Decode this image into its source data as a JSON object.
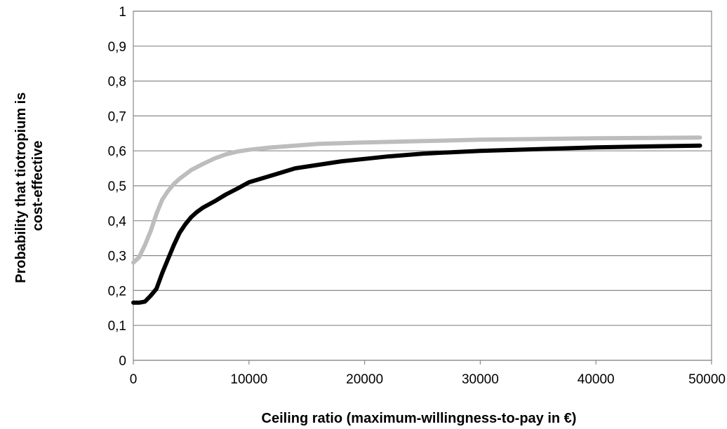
{
  "chart_data": {
    "type": "line",
    "title": "",
    "xlabel": "Ceiling ratio (maximum-willingness-to-pay in €)",
    "ylabel_lines": [
      "Probability that tiotropium is",
      "cost-effective"
    ],
    "xlim": [
      0,
      50000
    ],
    "ylim": [
      0,
      1
    ],
    "x_ticks": [
      0,
      10000,
      20000,
      30000,
      40000,
      50000
    ],
    "x_tick_labels": [
      "0",
      "10000",
      "20000",
      "30000",
      "40000",
      "50000"
    ],
    "y_ticks": [
      0,
      0.1,
      0.2,
      0.3,
      0.4,
      0.5,
      0.6,
      0.7,
      0.8,
      0.9,
      1
    ],
    "y_tick_labels": [
      "0",
      "0,1",
      "0,2",
      "0,3",
      "0,4",
      "0,5",
      "0,6",
      "0,7",
      "0,8",
      "0,9",
      "1"
    ],
    "grid": "horizontal",
    "legend": "none",
    "series": [
      {
        "color": "#bdbdbd",
        "x": [
          0,
          500,
          1000,
          1500,
          2000,
          2500,
          3000,
          3500,
          4000,
          5000,
          6000,
          7000,
          8000,
          9000,
          10000,
          12000,
          14000,
          16000,
          18000,
          20000,
          25000,
          30000,
          35000,
          40000,
          45000,
          49000
        ],
        "y": [
          0.28,
          0.295,
          0.33,
          0.37,
          0.42,
          0.46,
          0.485,
          0.505,
          0.52,
          0.545,
          0.562,
          0.578,
          0.59,
          0.598,
          0.603,
          0.61,
          0.615,
          0.62,
          0.622,
          0.624,
          0.628,
          0.632,
          0.634,
          0.636,
          0.637,
          0.638
        ]
      },
      {
        "color": "#000000",
        "x": [
          0,
          500,
          1000,
          1500,
          2000,
          2500,
          3000,
          3500,
          4000,
          4500,
          5000,
          5500,
          6000,
          7000,
          8000,
          9000,
          10000,
          12000,
          14000,
          16000,
          18000,
          20000,
          22000,
          25000,
          30000,
          35000,
          40000,
          45000,
          49000
        ],
        "y": [
          0.165,
          0.165,
          0.168,
          0.185,
          0.205,
          0.25,
          0.29,
          0.33,
          0.365,
          0.39,
          0.41,
          0.425,
          0.437,
          0.455,
          0.475,
          0.492,
          0.51,
          0.53,
          0.55,
          0.56,
          0.57,
          0.577,
          0.584,
          0.592,
          0.6,
          0.605,
          0.61,
          0.613,
          0.615
        ]
      }
    ]
  }
}
